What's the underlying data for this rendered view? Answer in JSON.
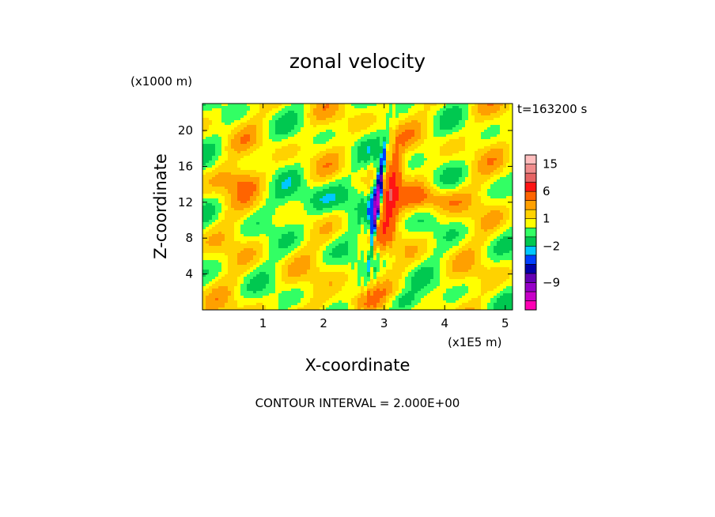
{
  "chart_data": {
    "type": "heatmap",
    "title": "zonal velocity",
    "xlabel": "X-coordinate",
    "ylabel": "Z-coordinate",
    "x_unit": "(x1E5 m)",
    "y_unit": "(x1000 m)",
    "time_label": "t=163200 s",
    "footer": "CONTOUR INTERVAL = 2.000E+00",
    "xlim": [
      0,
      5.12
    ],
    "ylim": [
      0,
      23
    ],
    "x_ticks": [
      1,
      2,
      3,
      4,
      5
    ],
    "x_tick_labels": [
      "1",
      "2",
      "3",
      "4",
      "5"
    ],
    "y_ticks": [
      4,
      8,
      12,
      16,
      20
    ],
    "y_tick_labels": [
      "4",
      "8",
      "12",
      "16",
      "20"
    ],
    "colorbar": {
      "levels": [
        -15,
        -13,
        -11,
        -9,
        -7,
        -5,
        -3,
        -2,
        -1,
        0,
        1,
        2,
        3,
        6,
        9,
        12,
        15,
        18
      ],
      "colors": [
        "#ff00b4",
        "#c800c8",
        "#9600c8",
        "#6400b4",
        "#0000aa",
        "#0040ff",
        "#00c8ff",
        "#00c850",
        "#32ff64",
        "#ffff00",
        "#ffd200",
        "#ffa000",
        "#ff6400",
        "#ff1414",
        "#e66464",
        "#f08c8c",
        "#ffbebe"
      ],
      "tick_values": [
        15,
        6,
        1,
        -2,
        -9
      ],
      "tick_labels": [
        "15",
        "6",
        "1",
        "−2",
        "−9"
      ]
    }
  }
}
